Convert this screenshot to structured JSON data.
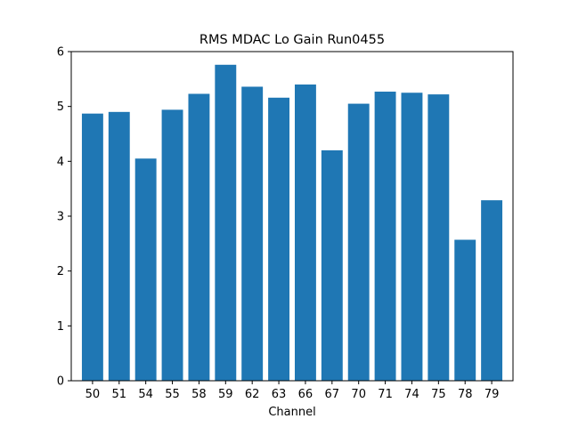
{
  "chart_data": {
    "type": "bar",
    "title": "RMS MDAC Lo Gain Run0455",
    "xlabel": "Channel",
    "ylabel": "",
    "categories": [
      "50",
      "51",
      "54",
      "55",
      "58",
      "59",
      "62",
      "63",
      "66",
      "67",
      "70",
      "71",
      "74",
      "75",
      "78",
      "79"
    ],
    "values": [
      4.87,
      4.9,
      4.05,
      4.94,
      5.23,
      5.76,
      5.36,
      5.16,
      5.4,
      4.2,
      5.05,
      5.27,
      5.25,
      5.22,
      2.57,
      3.29
    ],
    "ylim": [
      0,
      6
    ],
    "yticks": [
      "0",
      "1",
      "2",
      "3",
      "4",
      "5",
      "6"
    ],
    "grid": false,
    "bar_color": "#1f77b4"
  }
}
